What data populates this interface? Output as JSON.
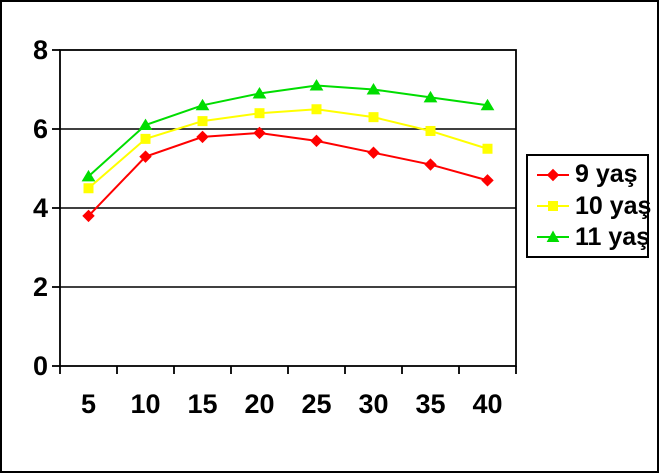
{
  "chart_data": {
    "type": "line",
    "title": "",
    "xlabel": "",
    "ylabel": "",
    "x": [
      5,
      10,
      15,
      20,
      25,
      30,
      35,
      40
    ],
    "series": [
      {
        "name": "9 yaş",
        "color": "#FF0000",
        "marker": "diamond",
        "values": [
          3.8,
          5.3,
          5.8,
          5.9,
          5.7,
          5.4,
          5.1,
          4.7
        ]
      },
      {
        "name": "10 yaş",
        "color": "#FFFF00",
        "marker": "square",
        "values": [
          4.5,
          5.75,
          6.2,
          6.4,
          6.5,
          6.3,
          5.95,
          5.5
        ]
      },
      {
        "name": "11 yaş",
        "color": "#00DD00",
        "marker": "triangle",
        "values": [
          4.8,
          6.1,
          6.6,
          6.9,
          7.1,
          7.0,
          6.8,
          6.6
        ]
      }
    ],
    "ylim": [
      0,
      8
    ],
    "y_ticks": [
      0,
      2,
      4,
      6,
      8
    ],
    "grid": true,
    "legend_position": "right",
    "plot_border": true
  },
  "colors": {
    "background": "#FFFFFF",
    "axis": "#000000",
    "gridline": "#000000",
    "text": "#000000",
    "outer_border": "#000000"
  }
}
